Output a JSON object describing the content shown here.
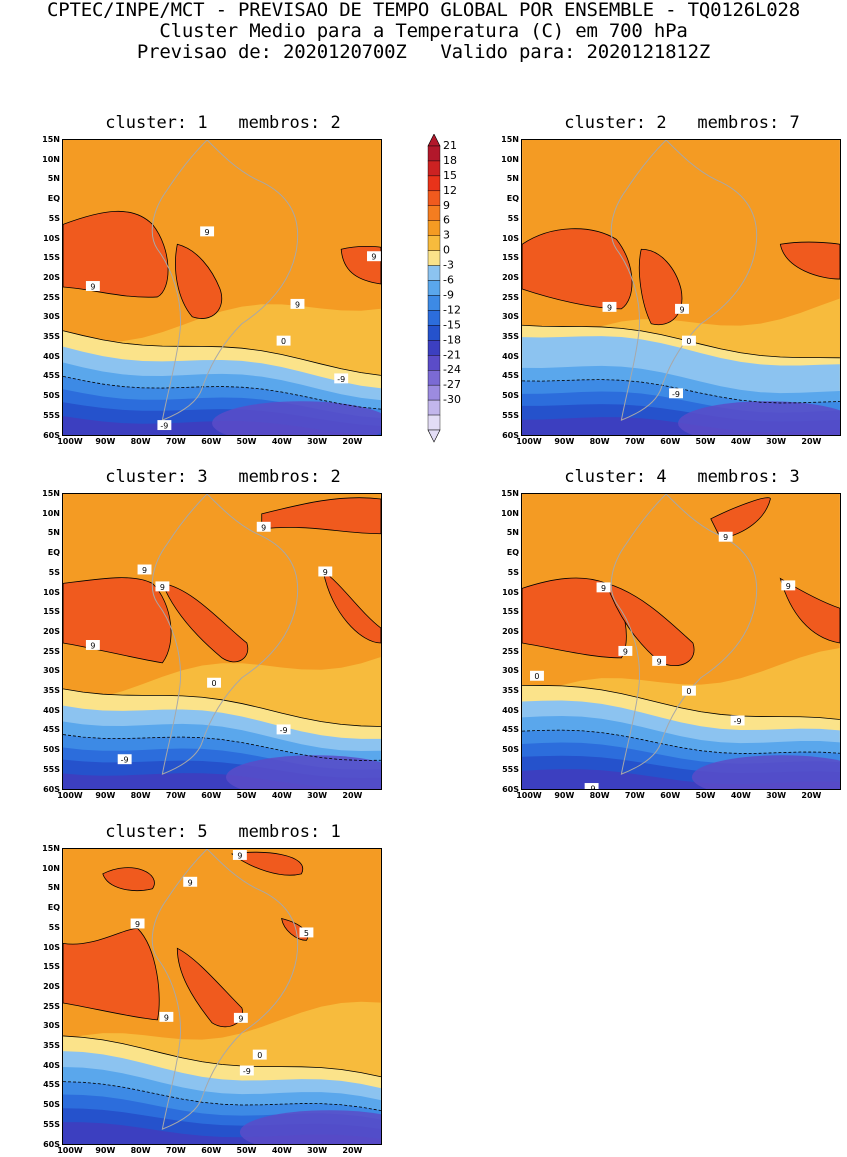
{
  "header": {
    "line1": "CPTEC/INPE/MCT - PREVISAO DE TEMPO GLOBAL POR ENSEMBLE - TQ0126L028",
    "line2": "Cluster Medio para a Temperatura (C) em 700 hPa",
    "line3": "Previsao de: 2020120700Z   Valido para: 2020121812Z"
  },
  "axes": {
    "lat_labels": [
      "15N",
      "10N",
      "5N",
      "EQ",
      "5S",
      "10S",
      "15S",
      "20S",
      "25S",
      "30S",
      "35S",
      "40S",
      "45S",
      "50S",
      "55S",
      "60S"
    ],
    "lon_labels": [
      "100W",
      "90W",
      "80W",
      "70W",
      "60W",
      "50W",
      "40W",
      "30W",
      "20W"
    ]
  },
  "colorbar": {
    "levels": [
      "21",
      "18",
      "15",
      "12",
      "9",
      "6",
      "3",
      "0",
      "-3",
      "-6",
      "-9",
      "-12",
      "-15",
      "-18",
      "-21",
      "-24",
      "-27",
      "-30"
    ],
    "colors": [
      "#b2182b",
      "#cc2222",
      "#e8331a",
      "#f05a1e",
      "#f47d20",
      "#f49b23",
      "#f7bb3d",
      "#fbe38a",
      "#8cc3f0",
      "#5aa7ec",
      "#3d8ae5",
      "#2c6ddc",
      "#2552cc",
      "#3c3fc0",
      "#5b4cc8",
      "#7b6ad4",
      "#9c8be0",
      "#c2b6ec",
      "#e3ddf6"
    ],
    "arrow_top": "#b2182b",
    "arrow_bottom": "#e3ddf6"
  },
  "panels": [
    {
      "cluster_label": "cluster:",
      "cluster": "1",
      "membros_label": "membros:",
      "membros": "2",
      "contour_labels": [
        "9",
        "9",
        "9",
        "9",
        "0",
        "-9",
        "-9"
      ]
    },
    {
      "cluster_label": "cluster:",
      "cluster": "2",
      "membros_label": "membros:",
      "membros": "7",
      "contour_labels": [
        "9",
        "9",
        "0",
        "-9"
      ]
    },
    {
      "cluster_label": "cluster:",
      "cluster": "3",
      "membros_label": "membros:",
      "membros": "2",
      "contour_labels": [
        "9",
        "9",
        "9",
        "9",
        "9",
        "0",
        "-9",
        "-9"
      ]
    },
    {
      "cluster_label": "cluster:",
      "cluster": "4",
      "membros_label": "membros:",
      "membros": "3",
      "contour_labels": [
        "9",
        "9",
        "9",
        "9",
        "9",
        "0",
        "0",
        "-9",
        "-9"
      ]
    },
    {
      "cluster_label": "cluster:",
      "cluster": "5",
      "membros_label": "membros:",
      "membros": "1",
      "contour_labels": [
        "9",
        "9",
        "9",
        "5",
        "9",
        "9",
        "0",
        "-9"
      ]
    }
  ]
}
